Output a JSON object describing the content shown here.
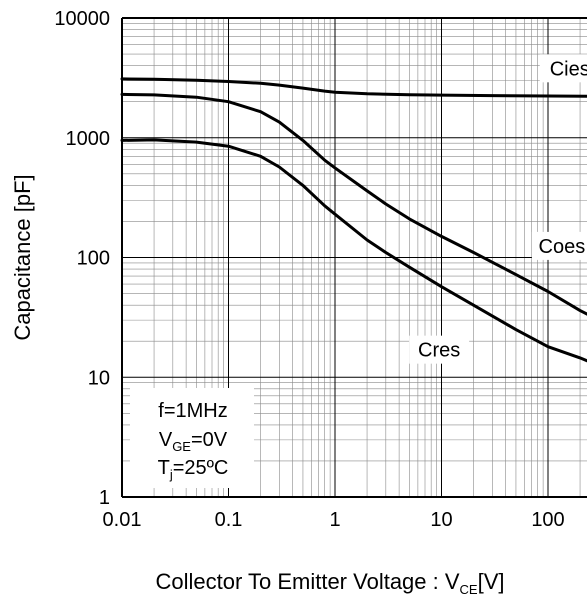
{
  "chart_data": {
    "type": "line",
    "x_scale": "log",
    "y_scale": "log",
    "xlim": [
      0.01,
      300
    ],
    "ylim": [
      1,
      10000
    ],
    "grid": true,
    "x_ticks": [
      0.01,
      0.1,
      1,
      10,
      100
    ],
    "x_tick_labels": [
      "0.01",
      "0.1",
      "1",
      "10",
      "100"
    ],
    "y_ticks": [
      1,
      10,
      100,
      1000,
      10000
    ],
    "y_tick_labels": [
      "1",
      "10",
      "100",
      "1000",
      "10000"
    ],
    "xlabel": {
      "main": "Collector To Emitter Voltage : V",
      "sub": "CE",
      "tail": "[V]"
    },
    "ylabel": "Capacitance [pF]",
    "conditions": [
      {
        "main": "f=1MHz",
        "sub": "",
        "tail": ""
      },
      {
        "main": "V",
        "sub": "GE",
        "tail": "=0V"
      },
      {
        "main": "T",
        "sub": "j",
        "tail": "=25ºC"
      }
    ],
    "series": [
      {
        "name": "Cies",
        "x": [
          0.01,
          0.02,
          0.05,
          0.1,
          0.2,
          0.3,
          0.5,
          0.8,
          1,
          2,
          5,
          10,
          30,
          100,
          300
        ],
        "y": [
          3100,
          3080,
          3020,
          2950,
          2850,
          2750,
          2600,
          2450,
          2400,
          2330,
          2290,
          2270,
          2250,
          2230,
          2220
        ]
      },
      {
        "name": "Coes",
        "x": [
          0.01,
          0.02,
          0.05,
          0.1,
          0.2,
          0.3,
          0.5,
          0.8,
          1,
          2,
          3,
          5,
          10,
          20,
          50,
          100,
          200,
          300
        ],
        "y": [
          2300,
          2280,
          2180,
          2000,
          1650,
          1350,
          950,
          650,
          560,
          360,
          280,
          210,
          150,
          110,
          72,
          52,
          36,
          30
        ]
      },
      {
        "name": "Cres",
        "x": [
          0.01,
          0.02,
          0.05,
          0.1,
          0.2,
          0.3,
          0.5,
          0.8,
          1,
          2,
          3,
          5,
          10,
          20,
          50,
          100,
          200,
          300
        ],
        "y": [
          950,
          960,
          920,
          850,
          700,
          570,
          400,
          270,
          230,
          140,
          110,
          83,
          57,
          40,
          25,
          18,
          14.5,
          12.5
        ]
      }
    ],
    "series_label_pos": [
      {
        "x": 160,
        "y": 3800
      },
      {
        "x": 135,
        "y": 125
      },
      {
        "x": 9.5,
        "y": 17
      }
    ]
  }
}
